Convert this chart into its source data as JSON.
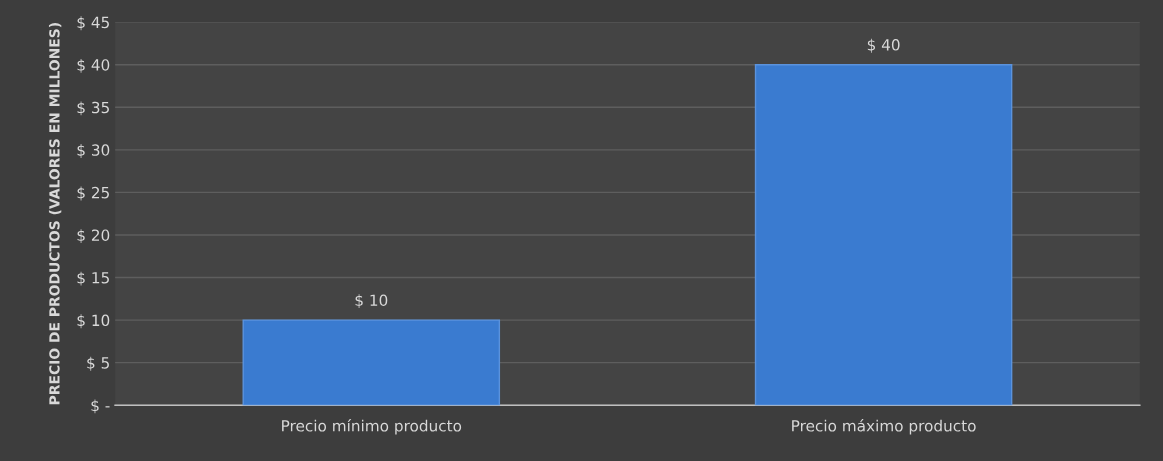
{
  "chart_data": {
    "type": "bar",
    "ylabel": "PRECIO DE PRODUCTOS (VALORES EN MILLONES)",
    "categories": [
      "Precio mínimo producto",
      "Precio máximo producto"
    ],
    "values": [
      10,
      40
    ],
    "value_labels": [
      "$ 10",
      "$ 40"
    ],
    "color": "#3a7bd0",
    "ylim": [
      0,
      45
    ],
    "yticks": [
      {
        "value": 0,
        "label": "$ -"
      },
      {
        "value": 5,
        "label": "$ 5"
      },
      {
        "value": 10,
        "label": "$ 10"
      },
      {
        "value": 15,
        "label": "$ 15"
      },
      {
        "value": 20,
        "label": "$ 20"
      },
      {
        "value": 25,
        "label": "$ 25"
      },
      {
        "value": 30,
        "label": "$ 30"
      },
      {
        "value": 35,
        "label": "$ 35"
      },
      {
        "value": 40,
        "label": "$ 40"
      },
      {
        "value": 45,
        "label": "$ 45"
      }
    ],
    "grid": "y"
  }
}
